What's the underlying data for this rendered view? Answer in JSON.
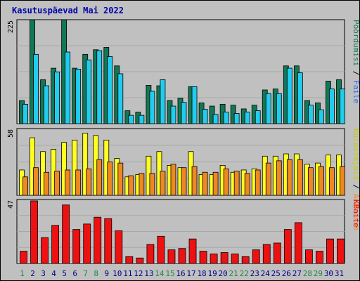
{
  "chart_data": {
    "type": "bar",
    "title": "Kasutuspäevad Mai 2022",
    "categories": [
      "1",
      "2",
      "3",
      "4",
      "5",
      "6",
      "7",
      "8",
      "9",
      "10",
      "11",
      "12",
      "13",
      "14",
      "15",
      "16",
      "17",
      "18",
      "19",
      "20",
      "21",
      "22",
      "23",
      "24",
      "25",
      "26",
      "27",
      "28",
      "29",
      "30",
      "31"
    ],
    "weekend_days": [
      "1",
      "7",
      "8",
      "14",
      "15",
      "21",
      "22",
      "28",
      "29"
    ],
    "grid": true,
    "legend_position": "right",
    "panels": [
      {
        "ymax_label": "225",
        "ymax": 225,
        "right_labels": [
          "Pöördumisi",
          "Faile"
        ],
        "series": [
          {
            "name": "Pöördumisi",
            "color": "#117755",
            "values": [
              50,
              225,
              95,
              120,
              225,
              120,
              150,
              160,
              165,
              125,
              28,
              25,
              83,
              82,
              50,
              55,
              80,
              45,
              38,
              42,
              40,
              32,
              40,
              73,
              75,
              125,
              125,
              50,
              45,
              92,
              95
            ]
          },
          {
            "name": "Faile",
            "color": "#22ccee",
            "values": [
              42,
              150,
              82,
              112,
              155,
              118,
              138,
              158,
              145,
              108,
              18,
              18,
              70,
              95,
              38,
              46,
              80,
              31,
              20,
              25,
              22,
              25,
              28,
              65,
              65,
              120,
              110,
              40,
              30,
              75,
              75
            ]
          }
        ]
      },
      {
        "ymax_label": "58",
        "ymax": 58,
        "right_labels": [
          "Külastajaid",
          "Aadresse"
        ],
        "series": [
          {
            "name": "Külastajaid",
            "color": "#ffff22",
            "values": [
              22,
              50,
              38,
              40,
              46,
              48,
              54,
              52,
              48,
              32,
              16,
              18,
              34,
              38,
              26,
              24,
              38,
              18,
              18,
              26,
              20,
              22,
              23,
              34,
              34,
              36,
              36,
              27,
              28,
              35,
              35
            ]
          },
          {
            "name": "Aadresse",
            "color": "#ee8822",
            "values": [
              16,
              24,
              20,
              21,
              22,
              22,
              23,
              31,
              29,
              28,
              17,
              19,
              19,
              21,
              27,
              24,
              25,
              20,
              20,
              23,
              21,
              19,
              22,
              28,
              30,
              31,
              31,
              24,
              25,
              24,
              25
            ]
          }
        ]
      },
      {
        "ymax_label": "47",
        "ymax": 47,
        "right_labels": [
          "KBaite"
        ],
        "series": [
          {
            "name": "KBaite",
            "color": "#ee1111",
            "values": [
              9,
              46,
              19,
              28,
              43,
              25,
              29,
              34,
              33,
              24,
              5,
              4,
              14,
              20,
              10,
              11,
              18,
              9,
              7,
              8,
              7,
              5,
              10,
              14,
              15,
              25,
              30,
              10,
              9,
              18,
              18
            ]
          }
        ]
      }
    ]
  }
}
